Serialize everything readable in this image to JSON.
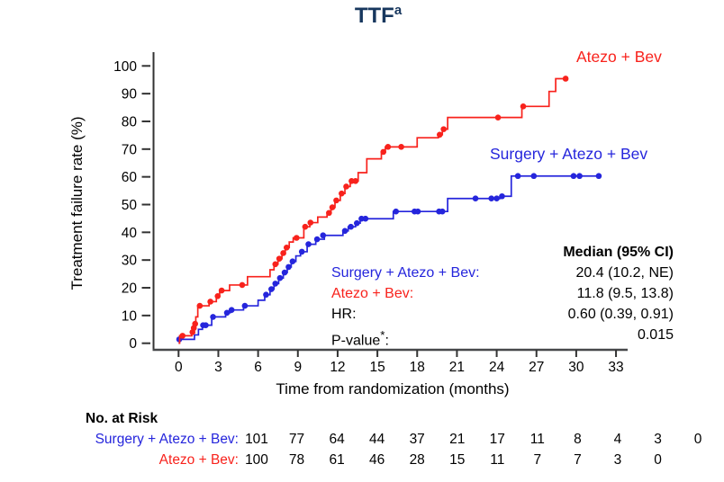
{
  "title": {
    "text": "TTF",
    "superscript": "a"
  },
  "colors": {
    "red": "#F8221C",
    "blue": "#2525DC",
    "title_navy": "#17375E",
    "axis": "#47484A"
  },
  "legend": {
    "red_label": "Atezo + Bev",
    "blue_label": "Surgery + Atezo + Bev"
  },
  "chart_data": {
    "type": "line",
    "subtype": "kaplan-meier-step",
    "title": "TTFa",
    "xlabel": "Time from randomization (months)",
    "ylabel": "Treatment failure rate (%)",
    "xlim": [
      0,
      33
    ],
    "ylim": [
      0,
      100
    ],
    "x_ticks": [
      0,
      3,
      6,
      9,
      12,
      15,
      18,
      21,
      24,
      27,
      30,
      33
    ],
    "y_ticks": [
      0,
      10,
      20,
      30,
      40,
      50,
      60,
      70,
      80,
      90,
      100
    ],
    "grid": false,
    "legend_position": "inline-right",
    "series": [
      {
        "name": "Surgery + Atezo + Bev",
        "color": "#2525DC",
        "end": 31.7,
        "steps": [
          [
            0,
            1.4
          ],
          [
            1.2,
            3
          ],
          [
            1.5,
            5
          ],
          [
            1.8,
            6.5
          ],
          [
            2.5,
            9.5
          ],
          [
            3.55,
            11
          ],
          [
            3.9,
            12
          ],
          [
            4.9,
            13.5
          ],
          [
            6.0,
            15.5
          ],
          [
            6.5,
            17.5
          ],
          [
            6.9,
            19.5
          ],
          [
            7.2,
            21.5
          ],
          [
            7.55,
            23.5
          ],
          [
            7.9,
            25.5
          ],
          [
            8.2,
            27.5
          ],
          [
            8.5,
            29.5
          ],
          [
            8.85,
            31.5
          ],
          [
            9.2,
            33
          ],
          [
            9.7,
            35.7
          ],
          [
            10.35,
            37.5
          ],
          [
            11.0,
            38.9
          ],
          [
            12.4,
            40.5
          ],
          [
            12.8,
            42
          ],
          [
            13.35,
            43.3
          ],
          [
            13.7,
            44.9
          ],
          [
            16.2,
            47.5
          ],
          [
            20.3,
            52.2
          ],
          [
            24.25,
            53
          ],
          [
            25.1,
            60.3
          ]
        ],
        "markers": [
          [
            0.05,
            1.4
          ],
          [
            1.85,
            6.5
          ],
          [
            2.05,
            6.5
          ],
          [
            2.6,
            9.5
          ],
          [
            3.65,
            11
          ],
          [
            4.0,
            12
          ],
          [
            5.0,
            13.5
          ],
          [
            6.6,
            17.5
          ],
          [
            7.0,
            19.5
          ],
          [
            7.3,
            21.5
          ],
          [
            7.65,
            23.5
          ],
          [
            8.0,
            25.5
          ],
          [
            8.3,
            27.5
          ],
          [
            8.6,
            29.5
          ],
          [
            9.3,
            33
          ],
          [
            9.8,
            35.7
          ],
          [
            10.45,
            37.5
          ],
          [
            10.9,
            38.9
          ],
          [
            12.55,
            40.5
          ],
          [
            13.0,
            42
          ],
          [
            13.45,
            43.3
          ],
          [
            13.8,
            44.9
          ],
          [
            14.1,
            44.9
          ],
          [
            16.4,
            47.5
          ],
          [
            17.8,
            47.5
          ],
          [
            18.05,
            47.5
          ],
          [
            19.65,
            47.5
          ],
          [
            19.9,
            47.5
          ],
          [
            22.4,
            52.2
          ],
          [
            23.6,
            52.2
          ],
          [
            24.0,
            52.2
          ],
          [
            24.4,
            53
          ],
          [
            25.6,
            60.3
          ],
          [
            26.8,
            60.3
          ],
          [
            29.8,
            60.3
          ],
          [
            30.25,
            60.3
          ],
          [
            31.7,
            60.3
          ]
        ]
      },
      {
        "name": "Atezo + Bev",
        "color": "#F8221C",
        "end": 29.2,
        "steps": [
          [
            0,
            0
          ],
          [
            0.08,
            2.7
          ],
          [
            1.0,
            4
          ],
          [
            1.1,
            5.5
          ],
          [
            1.2,
            7
          ],
          [
            1.3,
            9.5
          ],
          [
            1.45,
            13.5
          ],
          [
            2.3,
            15
          ],
          [
            2.85,
            17
          ],
          [
            3.1,
            19
          ],
          [
            3.85,
            21
          ],
          [
            5.2,
            24
          ],
          [
            6.9,
            26.5
          ],
          [
            7.2,
            28.5
          ],
          [
            7.5,
            30.5
          ],
          [
            7.8,
            32.5
          ],
          [
            8.05,
            34.5
          ],
          [
            8.35,
            36.5
          ],
          [
            8.65,
            38
          ],
          [
            9.45,
            42
          ],
          [
            9.9,
            43.5
          ],
          [
            10.5,
            45.5
          ],
          [
            11.2,
            47
          ],
          [
            11.5,
            49
          ],
          [
            11.8,
            51.5
          ],
          [
            12.2,
            54
          ],
          [
            12.55,
            56.5
          ],
          [
            12.95,
            58.5
          ],
          [
            13.55,
            61.5
          ],
          [
            14.2,
            66.5
          ],
          [
            15.3,
            69
          ],
          [
            15.6,
            70.8
          ],
          [
            18.0,
            74.1
          ],
          [
            19.6,
            75.2
          ],
          [
            19.9,
            77.2
          ],
          [
            20.3,
            81.4
          ],
          [
            25.9,
            85.4
          ],
          [
            27.95,
            90.8
          ],
          [
            28.45,
            95.4
          ]
        ],
        "markers": [
          [
            0.3,
            2.7
          ],
          [
            1.05,
            4
          ],
          [
            1.15,
            5.5
          ],
          [
            1.25,
            7
          ],
          [
            1.6,
            13.5
          ],
          [
            2.4,
            15
          ],
          [
            2.95,
            17
          ],
          [
            3.25,
            19
          ],
          [
            4.8,
            21
          ],
          [
            7.3,
            28.5
          ],
          [
            7.6,
            30.5
          ],
          [
            7.9,
            32.5
          ],
          [
            8.15,
            34.5
          ],
          [
            8.9,
            38
          ],
          [
            9.55,
            42
          ],
          [
            9.95,
            43.5
          ],
          [
            11.35,
            47
          ],
          [
            11.6,
            49
          ],
          [
            11.9,
            51.5
          ],
          [
            12.3,
            54
          ],
          [
            12.65,
            56.5
          ],
          [
            13.05,
            58.5
          ],
          [
            13.35,
            58.5
          ],
          [
            15.45,
            69
          ],
          [
            15.8,
            70.8
          ],
          [
            16.8,
            70.8
          ],
          [
            19.7,
            75.2
          ],
          [
            20.0,
            77.2
          ],
          [
            24.1,
            81.4
          ],
          [
            26.0,
            85.4
          ],
          [
            29.2,
            95.4
          ]
        ]
      }
    ]
  },
  "stats": {
    "header": "Median (95% CI)",
    "row_surgery": {
      "label": "Surgery + Atezo + Bev:",
      "value": "20.4 (10.2, NE)"
    },
    "row_atezo": {
      "label": "Atezo + Bev:",
      "value": "11.8 (9.5, 13.8)"
    },
    "row_hr": {
      "label": "HR:",
      "value": "0.60 (0.39, 0.91)"
    },
    "row_pvalue": {
      "label": "P-value",
      "superscript": "*",
      "colon": ":",
      "value": "0.015"
    }
  },
  "risk_table": {
    "title": "No. at Risk",
    "rows": [
      {
        "label": "Surgery + Atezo + Bev:",
        "color": "blue",
        "values": [
          "101",
          "77",
          "64",
          "44",
          "37",
          "21",
          "17",
          "11",
          "8",
          "4",
          "3",
          "0"
        ]
      },
      {
        "label": "Atezo + Bev:",
        "color": "red",
        "values": [
          "100",
          "78",
          "61",
          "46",
          "28",
          "15",
          "11",
          "7",
          "7",
          "3",
          "0"
        ]
      }
    ]
  }
}
